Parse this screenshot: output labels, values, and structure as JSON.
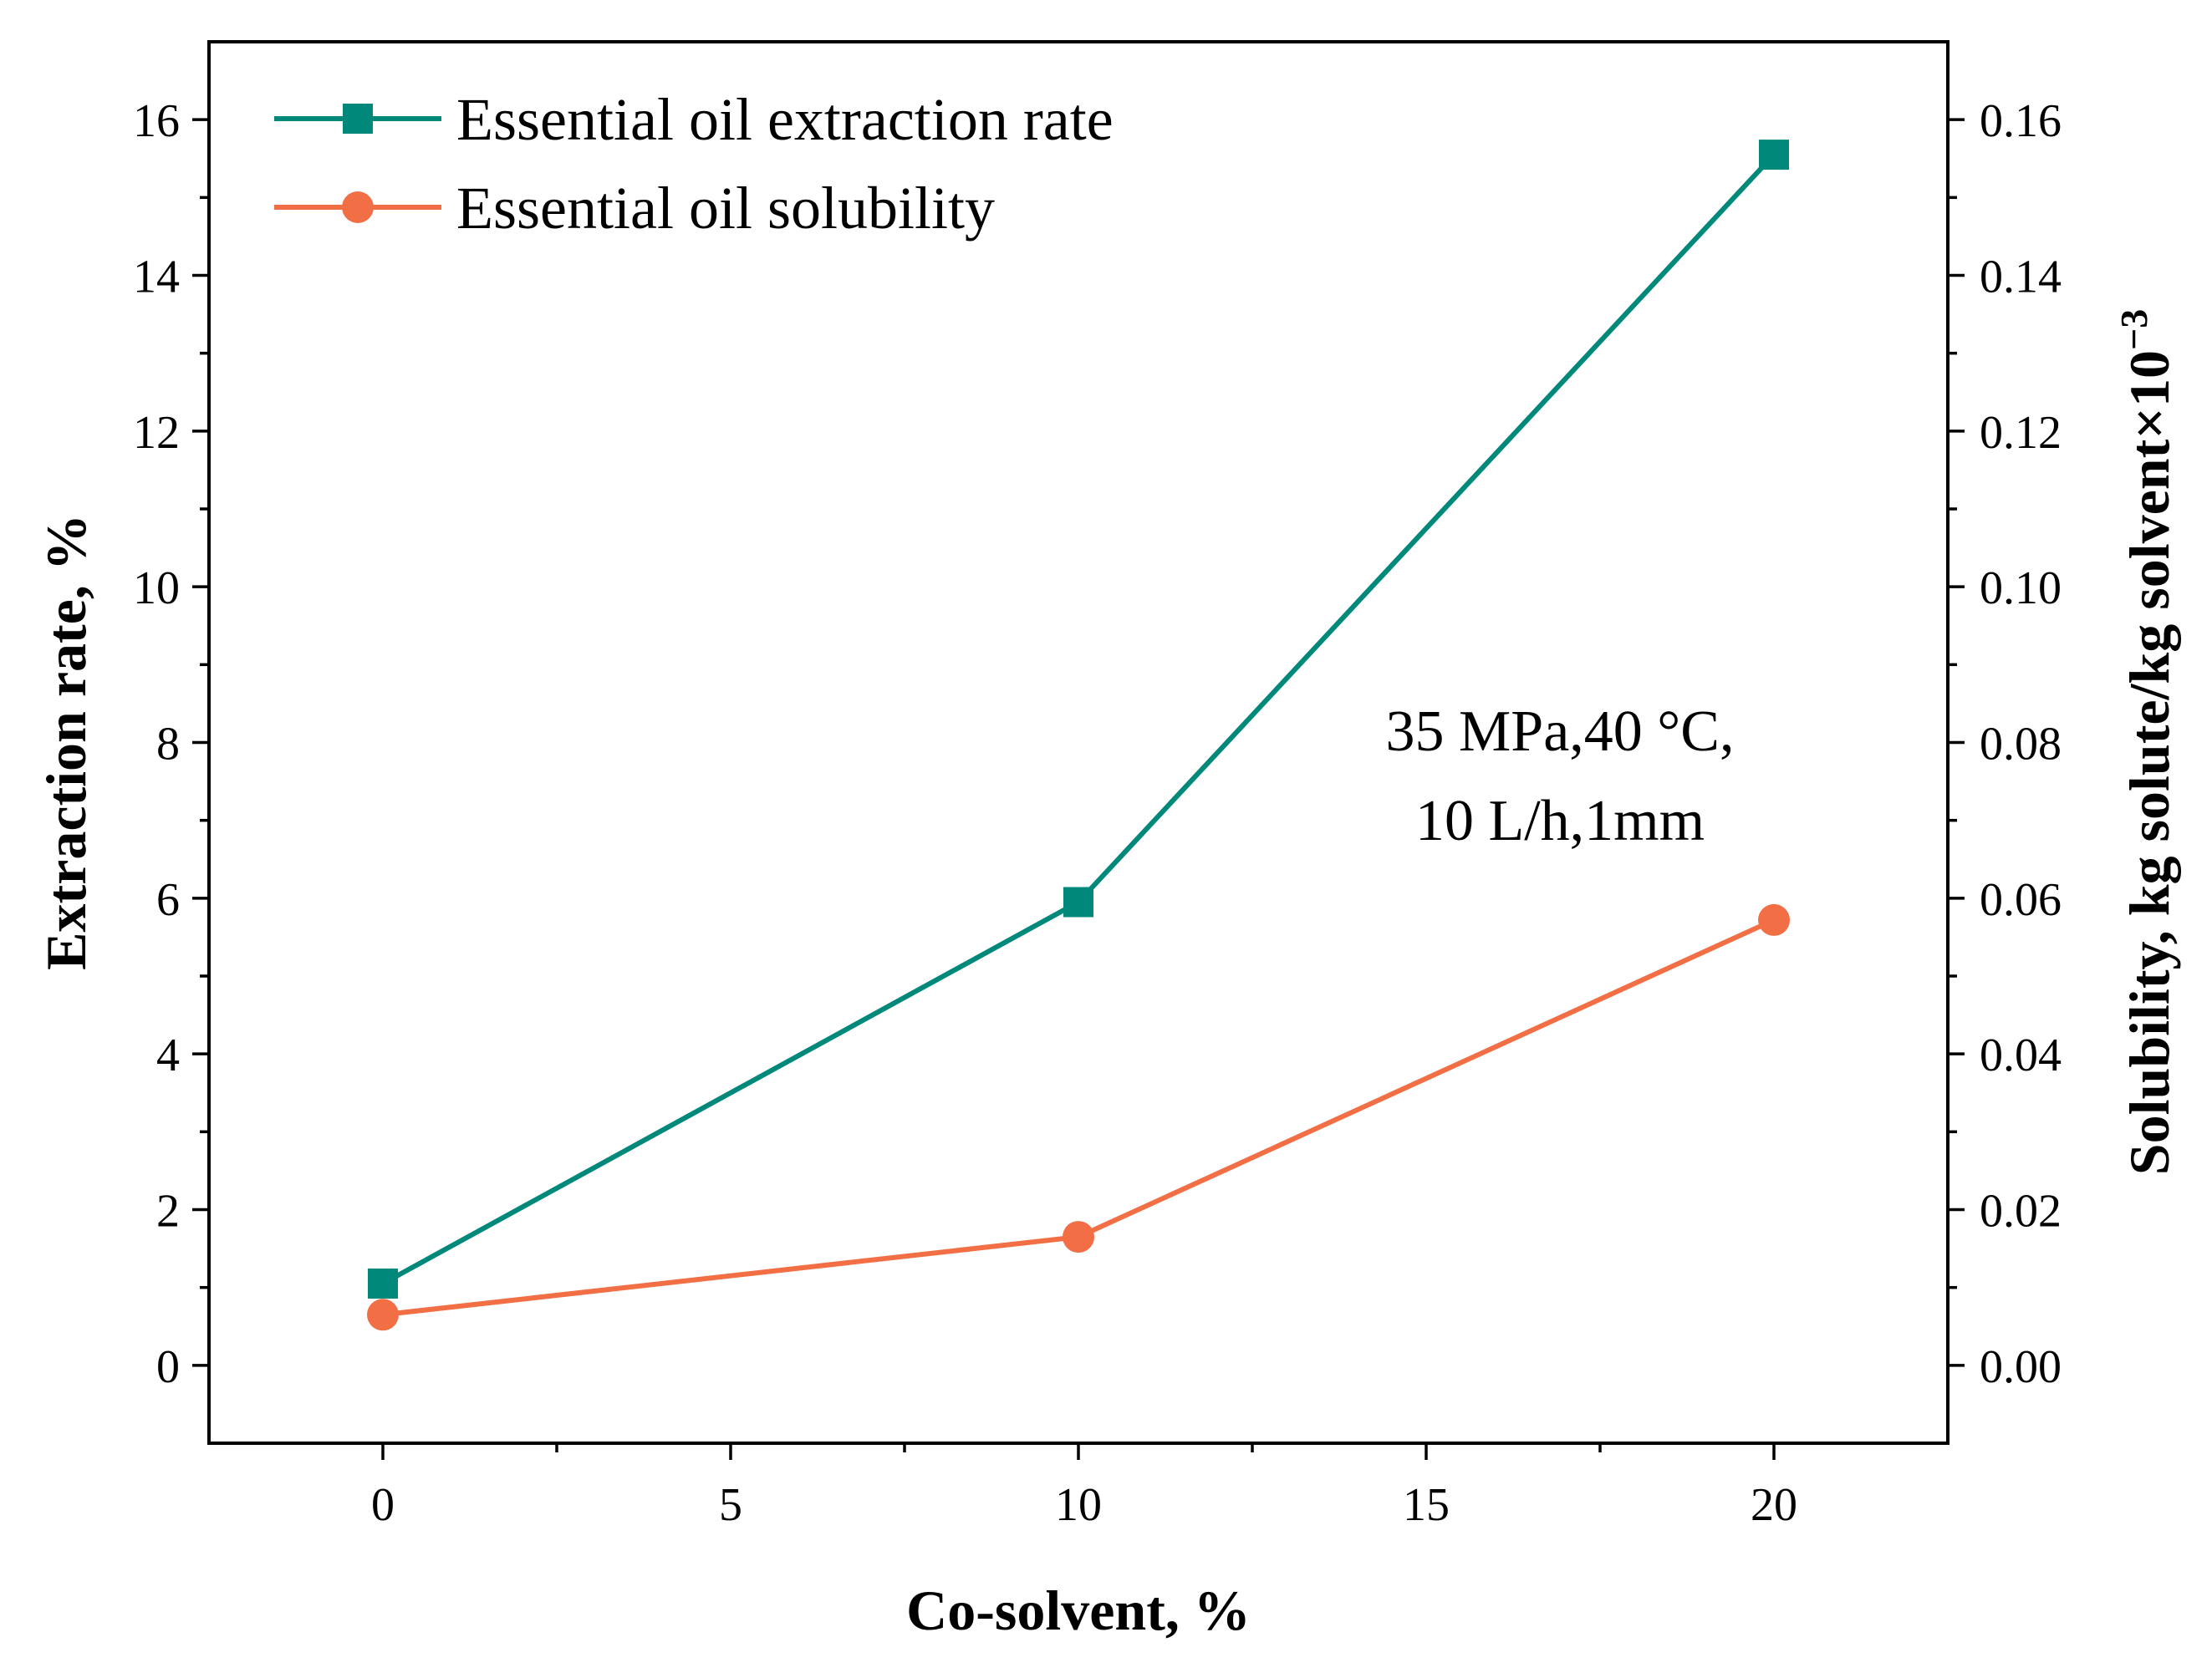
{
  "chart_data": {
    "type": "line",
    "x": [
      0,
      10,
      20
    ],
    "xlabel": "Co-solvent, %",
    "ylabel_left": "Extraction rate, %",
    "ylabel_right": "Solubility, kg solute/kg solvent×10",
    "ylabel_right_exponent": "−3",
    "xlim": [
      -2.5,
      22.5
    ],
    "ylim_left": [
      -1,
      17
    ],
    "ylim_right": [
      -0.01,
      0.17
    ],
    "x_ticks": [
      0,
      5,
      10,
      15,
      20
    ],
    "x_tick_labels": [
      "0",
      "5",
      "10",
      "15",
      "20"
    ],
    "y_left_ticks": [
      0,
      2,
      4,
      6,
      8,
      10,
      12,
      14,
      16
    ],
    "y_left_tick_labels": [
      "0",
      "2",
      "4",
      "6",
      "8",
      "10",
      "12",
      "14",
      "16"
    ],
    "y_right_ticks": [
      0,
      0.02,
      0.04,
      0.06,
      0.08,
      0.1,
      0.12,
      0.14,
      0.16
    ],
    "y_right_tick_labels": [
      "0.00",
      "0.02",
      "0.04",
      "0.06",
      "0.08",
      "0.10",
      "0.12",
      "0.14",
      "0.16"
    ],
    "series": [
      {
        "name": "Essential oil extraction rate",
        "axis": "left",
        "marker": "square",
        "color": "#00897B",
        "values": [
          1.05,
          5.95,
          15.55
        ]
      },
      {
        "name": "Essential oil solubility",
        "axis": "right",
        "marker": "circle",
        "color": "#F26F45",
        "values": [
          0.0065,
          0.0165,
          0.0572
        ]
      }
    ],
    "legend_position": "top-left",
    "annotation": [
      "35 MPa,40 °C,",
      "10 L/h,1mm"
    ]
  }
}
